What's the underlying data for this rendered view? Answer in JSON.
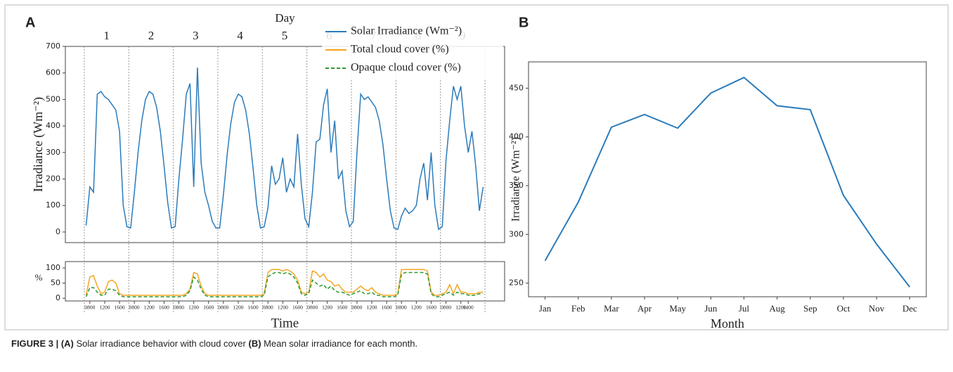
{
  "panel_a_label": "A",
  "panel_b_label": "B",
  "caption": {
    "label": "FIGURE 3 |",
    "a_tag": "(A)",
    "a_text": "Solar irradiance behavior with cloud cover",
    "b_tag": "(B)",
    "b_text": "Mean solar irradiance for each month."
  },
  "chart_data": [
    {
      "type": "line",
      "top_label": "Day",
      "day_labels": [
        "1",
        "2",
        "3",
        "4",
        "5",
        "6",
        "7",
        "8",
        "9"
      ],
      "y_label": "Irradiance (Wm⁻²)",
      "y2_label": "%",
      "x_label": "Time",
      "x": [
        0,
        1,
        2,
        3,
        4,
        5,
        6,
        7,
        8,
        9,
        10,
        11,
        12,
        13,
        14,
        15,
        16,
        17,
        18,
        19,
        20,
        21,
        22,
        23,
        24,
        25,
        26,
        27,
        28,
        29,
        30,
        31,
        32,
        33,
        34,
        35,
        36,
        37,
        38,
        39,
        40,
        41,
        42,
        43,
        44,
        45,
        46,
        47,
        48,
        49,
        50,
        51,
        52,
        53,
        54,
        55,
        56,
        57,
        58,
        59,
        60,
        61,
        62,
        63,
        64,
        65,
        66,
        67,
        68,
        69,
        70,
        71,
        72,
        73,
        74,
        75,
        76,
        77,
        78,
        79,
        80,
        81,
        82,
        83,
        84,
        85,
        86,
        87,
        88,
        89,
        90,
        91,
        92,
        93,
        94,
        95,
        96,
        97,
        98,
        99,
        100,
        101,
        102,
        103,
        104,
        105,
        106,
        107
      ],
      "xlim": [
        -5.6,
        112.8
      ],
      "ylim": [
        -40,
        700
      ],
      "yticks": [
        0,
        100,
        200,
        300,
        400,
        500,
        600,
        700
      ],
      "y2lim": [
        -9,
        121
      ],
      "y2ticks": [
        0,
        50,
        100
      ],
      "xticks": [
        {
          "value": 1,
          "label": "0800"
        },
        {
          "value": 5,
          "label": "1200"
        },
        {
          "value": 9,
          "label": "1600"
        },
        {
          "value": 13,
          "label": "0800"
        },
        {
          "value": 17,
          "label": "1200"
        },
        {
          "value": 21,
          "label": "1600"
        },
        {
          "value": 25,
          "label": "0800"
        },
        {
          "value": 29,
          "label": "1200"
        },
        {
          "value": 33,
          "label": "1600"
        },
        {
          "value": 37,
          "label": "0800"
        },
        {
          "value": 41,
          "label": "1200"
        },
        {
          "value": 45,
          "label": "1600"
        },
        {
          "value": 49,
          "label": "0800"
        },
        {
          "value": 53,
          "label": "1200"
        },
        {
          "value": 57,
          "label": "1600"
        },
        {
          "value": 61,
          "label": "0800"
        },
        {
          "value": 65,
          "label": "1200"
        },
        {
          "value": 69,
          "label": "1600"
        },
        {
          "value": 73,
          "label": "0800"
        },
        {
          "value": 77,
          "label": "1200"
        },
        {
          "value": 81,
          "label": "1600"
        },
        {
          "value": 85,
          "label": "0800"
        },
        {
          "value": 89,
          "label": "1200"
        },
        {
          "value": 93,
          "label": "1600"
        },
        {
          "value": 97,
          "label": "0800"
        },
        {
          "value": 101,
          "label": "1200"
        },
        {
          "value": 103,
          "label": "1400"
        }
      ],
      "samples_per_day": 12,
      "day_dividers": true,
      "series": [
        {
          "name": "Solar Irradiance (Wm⁻²)",
          "color": "#2b7bba",
          "values": [
            25,
            170,
            150,
            520,
            530,
            510,
            500,
            480,
            460,
            380,
            100,
            20,
            15,
            150,
            300,
            420,
            500,
            530,
            520,
            470,
            380,
            250,
            110,
            15,
            20,
            200,
            350,
            520,
            560,
            170,
            620,
            260,
            150,
            100,
            40,
            15,
            15,
            140,
            290,
            410,
            490,
            520,
            510,
            460,
            370,
            240,
            100,
            15,
            20,
            90,
            250,
            180,
            200,
            280,
            150,
            200,
            170,
            370,
            180,
            50,
            20,
            150,
            340,
            350,
            480,
            540,
            300,
            420,
            200,
            230,
            80,
            20,
            40,
            300,
            520,
            500,
            510,
            490,
            470,
            420,
            330,
            200,
            80,
            15,
            10,
            60,
            90,
            70,
            80,
            100,
            200,
            260,
            120,
            300,
            100,
            10,
            20,
            270,
            420,
            550,
            500,
            550,
            400,
            300,
            380,
            250,
            80,
            170
          ]
        },
        {
          "name": "Total cloud cover (%)",
          "color": "#f5a623",
          "axis": "y2",
          "dashed": false,
          "values": [
            10,
            70,
            75,
            40,
            15,
            20,
            55,
            60,
            50,
            15,
            10,
            10,
            10,
            10,
            10,
            10,
            10,
            10,
            10,
            10,
            10,
            10,
            10,
            10,
            10,
            10,
            10,
            15,
            30,
            85,
            80,
            40,
            15,
            10,
            10,
            10,
            10,
            10,
            10,
            10,
            10,
            10,
            10,
            10,
            10,
            10,
            10,
            10,
            15,
            85,
            95,
            95,
            95,
            90,
            95,
            90,
            80,
            60,
            20,
            15,
            20,
            90,
            85,
            70,
            80,
            60,
            55,
            40,
            45,
            30,
            20,
            20,
            20,
            30,
            40,
            30,
            25,
            35,
            20,
            15,
            10,
            10,
            10,
            10,
            15,
            95,
            95,
            95,
            95,
            95,
            95,
            95,
            90,
            20,
            10,
            10,
            15,
            20,
            45,
            15,
            45,
            20,
            20,
            15,
            15,
            15,
            20,
            20
          ]
        },
        {
          "name": "Opaque cloud cover (%)",
          "color": "#2e9a2e",
          "axis": "y2",
          "dashed": true,
          "values": [
            5,
            35,
            35,
            20,
            10,
            10,
            30,
            30,
            25,
            10,
            5,
            5,
            5,
            5,
            5,
            5,
            5,
            5,
            5,
            5,
            5,
            5,
            5,
            5,
            5,
            5,
            5,
            10,
            25,
            70,
            60,
            30,
            10,
            5,
            5,
            5,
            5,
            5,
            5,
            5,
            5,
            5,
            5,
            5,
            5,
            5,
            5,
            5,
            10,
            70,
            80,
            85,
            85,
            80,
            85,
            80,
            70,
            50,
            15,
            10,
            15,
            60,
            50,
            40,
            45,
            30,
            40,
            25,
            20,
            20,
            15,
            10,
            15,
            20,
            25,
            15,
            15,
            20,
            10,
            10,
            5,
            5,
            5,
            5,
            10,
            80,
            85,
            85,
            85,
            85,
            85,
            85,
            80,
            15,
            5,
            5,
            10,
            15,
            20,
            10,
            20,
            15,
            15,
            10,
            10,
            10,
            15,
            15
          ]
        }
      ]
    },
    {
      "type": "line",
      "x_label": "Month",
      "y_label": "Irradiance (Wm⁻²)",
      "categories": [
        "Jan",
        "Feb",
        "Mar",
        "Apr",
        "May",
        "Jun",
        "Jul",
        "Aug",
        "Sep",
        "Oct",
        "Nov",
        "Dec"
      ],
      "values": [
        273,
        333,
        410,
        423,
        409,
        445,
        461,
        432,
        428,
        340,
        290,
        246
      ],
      "color": "#2b7bba",
      "ylim": [
        236,
        477
      ],
      "yticks": [
        250,
        300,
        350,
        400,
        450
      ]
    }
  ]
}
